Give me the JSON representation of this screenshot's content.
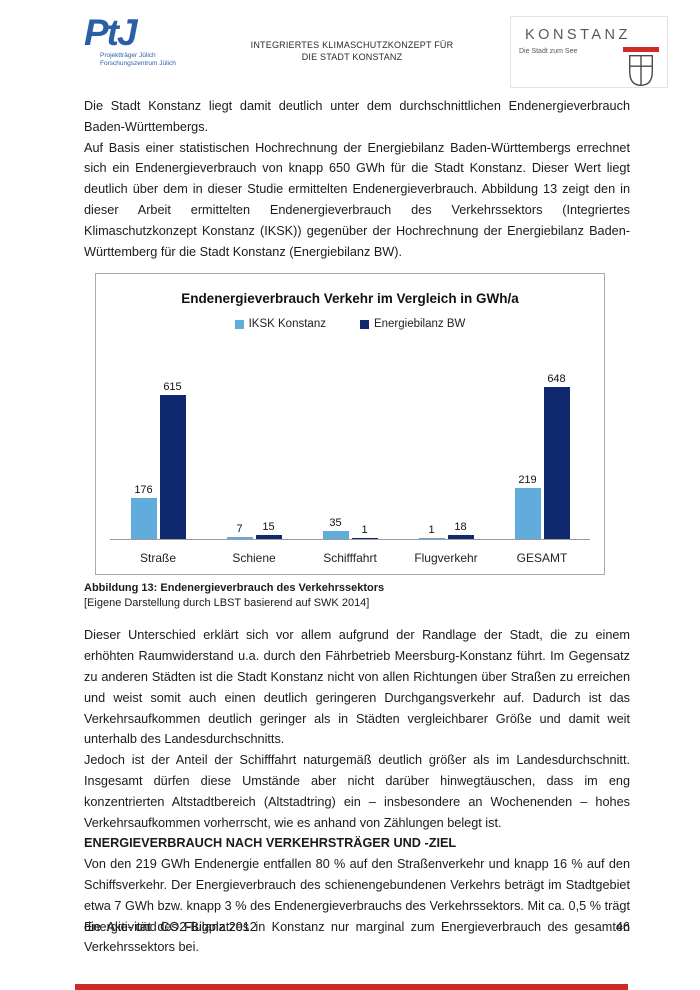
{
  "header": {
    "ptj": {
      "logo_text": "PtJ",
      "line1": "Projektträger Jülich",
      "line2": "Forschungszentrum Jülich"
    },
    "doc_title_line1": "INTEGRIERTES KLIMASCHUTZKONZEPT FÜR",
    "doc_title_line2": "DIE STADT KONSTANZ",
    "konstanz": {
      "name": "KONSTANZ",
      "tagline": "Die Stadt zum See"
    }
  },
  "body": {
    "p1": "Die Stadt Konstanz liegt damit deutlich unter dem durchschnittlichen Endenergieverbrauch Baden-Württembergs.",
    "p2": "Auf Basis einer statistischen Hochrechnung der Energiebilanz Baden-Württembergs errechnet sich ein Endenergieverbrauch von knapp 650 GWh für die Stadt Konstanz. Dieser Wert liegt deutlich über dem in dieser Studie ermittelten Endenergieverbrauch. Abbildung 13 zeigt den in dieser Arbeit ermittelten Endenergieverbrauch des Verkehrssektors (Integriertes Klimaschutzkonzept Konstanz (IKSK)) gegenüber der Hochrechnung der Energiebilanz Baden-Württemberg für die Stadt Konstanz (Energiebilanz BW).",
    "caption_bold": "Abbildung 13: Endenergieverbrauch des Verkehrssektors",
    "caption_source": "[Eigene Darstellung durch LBST basierend auf SWK 2014]",
    "p3": "Dieser Unterschied erklärt sich vor allem aufgrund der Randlage der Stadt, die zu einem erhöhten Raumwiderstand u.a. durch den Fährbetrieb Meersburg-Konstanz führt. Im Gegensatz zu anderen Städten ist die Stadt Konstanz nicht von allen Richtungen über Straßen zu erreichen und weist somit auch einen deutlich geringeren Durchgangsverkehr auf. Dadurch ist das Verkehrsaufkommen deutlich geringer als in Städten vergleichbarer Größe und damit weit unterhalb des Landesdurchschnitts.",
    "p4": "Jedoch ist der Anteil der Schifffahrt naturgemäß deutlich größer als im Landesdurchschnitt. Insgesamt dürfen diese Umstände aber nicht darüber hinwegtäuschen, dass im eng konzentrierten Altstadtbereich (Altstadtring) ein – insbesondere an Wochenenden – hohes Verkehrsaufkommen vorherrscht, wie es anhand von Zählungen belegt ist.",
    "heading": "ENERGIEVERBRAUCH NACH VERKEHRSTRÄGER UND -ZIEL",
    "p5": "Von den 219 GWh Endenergie entfallen 80 % auf den Straßenverkehr und knapp 16 % auf den Schiffsverkehr. Der Energieverbrauch des schienengebundenen Verkehrs beträgt im Stadtgebiet etwa 7 GWh bzw. knapp 3 % des Endenergieverbrauchs des Verkehrssektors. Mit ca. 0,5 % trägt die Aktivität des Flugplatzes in Konstanz nur marginal zum Energieverbrauch des gesamten Verkehrssektors bei."
  },
  "chart_data": {
    "type": "bar",
    "title": "Endenergieverbrauch Verkehr im Vergleich in GWh/a",
    "categories": [
      "Straße",
      "Schiene",
      "Schifffahrt",
      "Flugverkehr",
      "GESAMT"
    ],
    "series": [
      {
        "name": "IKSK Konstanz",
        "color": "#61ACDB",
        "values": [
          176,
          7,
          35,
          1,
          219
        ]
      },
      {
        "name": "Energiebilanz BW",
        "color": "#10296E",
        "values": [
          615,
          15,
          1,
          18,
          648
        ]
      }
    ],
    "unit": "GWh/a",
    "ylim": [
      0,
      700
    ],
    "grid": false,
    "legend_position": "top",
    "data_labels": true
  },
  "footer": {
    "left": "Energie- und CO2-Bilanz 2012",
    "page_number": "46"
  },
  "colors": {
    "accent_red": "#CE2B28",
    "ptj_blue": "#2B5FA5",
    "bar_light_blue": "#61ACDB",
    "bar_navy": "#10296E",
    "konstanz_gray": "#58585a"
  }
}
